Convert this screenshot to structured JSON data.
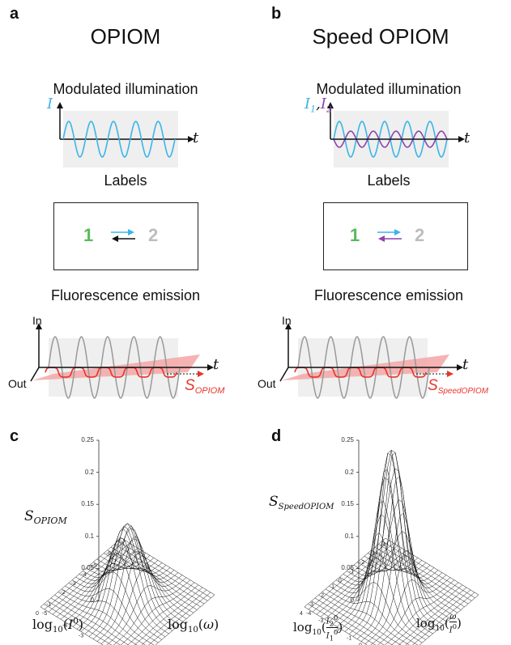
{
  "panels": {
    "a": {
      "letter": "a",
      "title": "OPIOM",
      "illum_label": "Modulated illumination",
      "light_symbol": "I",
      "time_symbol": "t",
      "labels_heading": "Labels",
      "state1": "1",
      "state2": "2",
      "emission_heading": "Fluorescence emission",
      "axis_in": "In",
      "axis_out": "Out",
      "signal_base": "S",
      "signal_sub": "OPIOM"
    },
    "b": {
      "letter": "b",
      "title": "Speed OPIOM",
      "illum_label": "Modulated illumination",
      "light_symbol_1": "I",
      "light_sub_1": "1",
      "light_comma": ",",
      "light_symbol_2": "I",
      "light_sub_2": "2",
      "time_symbol": "t",
      "labels_heading": "Labels",
      "state1": "1",
      "state2": "2",
      "emission_heading": "Fluorescence emission",
      "axis_in": "In",
      "axis_out": "Out",
      "signal_base": "S",
      "signal_sub": "SpeedOPIOM"
    },
    "c": {
      "letter": "c",
      "z_label_base": "S",
      "z_label_sub": "OPIOM",
      "z_ticks": [
        "0.25",
        "0.2",
        "0.15",
        "0.1",
        "0.05",
        "0"
      ],
      "x_label": "log10(I0)",
      "y_label": "log10(ω)",
      "left_ticks": [
        "-7",
        "-6",
        "-5",
        "-4",
        "-3",
        "-2",
        "-1",
        "0"
      ],
      "right_ticks": [
        "-5",
        "-4",
        "-3",
        "-2",
        "-1",
        "0"
      ],
      "peak": 0.12
    },
    "d": {
      "letter": "d",
      "z_label_base": "S",
      "z_label_sub": "SpeedOPIOM",
      "z_ticks": [
        "0.25",
        "0.2",
        "0.15",
        "0.1",
        "0.05",
        "0"
      ],
      "x_label": "log10(I2^0 / I1^0)",
      "y_label": "log10(ω / I^0)",
      "left_ticks": [
        "-4",
        "-3",
        "-2",
        "-1",
        "0",
        "1",
        "2",
        "3",
        "4"
      ],
      "right_ticks": [
        "-4",
        "-3",
        "-2",
        "-1",
        "0",
        "1",
        "2",
        "3"
      ],
      "peak": 0.24
    }
  },
  "colors": {
    "cyan": "#3bb5e6",
    "purple": "#8e44ad",
    "green": "#5cb85c",
    "gray_label": "#bdbdbd",
    "red": "#e8342b",
    "pink_plane": "#f4a6a6",
    "gray_bg": "#efefef"
  }
}
